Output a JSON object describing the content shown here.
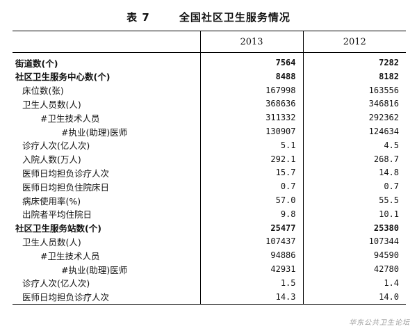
{
  "title": {
    "number": "表 7",
    "text": "全国社区卫生服务情况"
  },
  "columns": [
    "",
    "2013",
    "2012"
  ],
  "rows": [
    {
      "label": "街道数(个)",
      "indent": 0,
      "bold": true,
      "v2013": "7564",
      "v2012": "7282"
    },
    {
      "label": "社区卫生服务中心数(个)",
      "indent": 0,
      "bold": true,
      "v2013": "8488",
      "v2012": "8182"
    },
    {
      "label": "床位数(张)",
      "indent": 1,
      "bold": false,
      "v2013": "167998",
      "v2012": "163556"
    },
    {
      "label": "卫生人员数(人)",
      "indent": 1,
      "bold": false,
      "v2013": "368636",
      "v2012": "346816"
    },
    {
      "label": "#卫生技术人员",
      "indent": 2,
      "bold": false,
      "v2013": "311332",
      "v2012": "292362"
    },
    {
      "label": "#执业(助理)医师",
      "indent": 3,
      "bold": false,
      "v2013": "130907",
      "v2012": "124634"
    },
    {
      "label": "诊疗人次(亿人次)",
      "indent": 1,
      "bold": false,
      "v2013": "5.1",
      "v2012": "4.5"
    },
    {
      "label": "入院人数(万人)",
      "indent": 1,
      "bold": false,
      "v2013": "292.1",
      "v2012": "268.7"
    },
    {
      "label": "医师日均担负诊疗人次",
      "indent": 1,
      "bold": false,
      "v2013": "15.7",
      "v2012": "14.8"
    },
    {
      "label": "医师日均担负住院床日",
      "indent": 1,
      "bold": false,
      "v2013": "0.7",
      "v2012": "0.7"
    },
    {
      "label": "病床使用率(%)",
      "indent": 1,
      "bold": false,
      "v2013": "57.0",
      "v2012": "55.5"
    },
    {
      "label": "出院者平均住院日",
      "indent": 1,
      "bold": false,
      "v2013": "9.8",
      "v2012": "10.1"
    },
    {
      "label": "社区卫生服务站数(个)",
      "indent": 0,
      "bold": true,
      "v2013": "25477",
      "v2012": "25380"
    },
    {
      "label": "卫生人员数(人)",
      "indent": 1,
      "bold": false,
      "v2013": "107437",
      "v2012": "107344"
    },
    {
      "label": "#卫生技术人员",
      "indent": 2,
      "bold": false,
      "v2013": "94886",
      "v2012": "94590"
    },
    {
      "label": "#执业(助理)医师",
      "indent": 3,
      "bold": false,
      "v2013": "42931",
      "v2012": "42780"
    },
    {
      "label": "诊疗人次(亿人次)",
      "indent": 1,
      "bold": false,
      "v2013": "1.5",
      "v2012": "1.4"
    },
    {
      "label": "医师日均担负诊疗人次",
      "indent": 1,
      "bold": false,
      "v2013": "14.3",
      "v2012": "14.0"
    }
  ],
  "watermark": "华东公共卫生论坛"
}
